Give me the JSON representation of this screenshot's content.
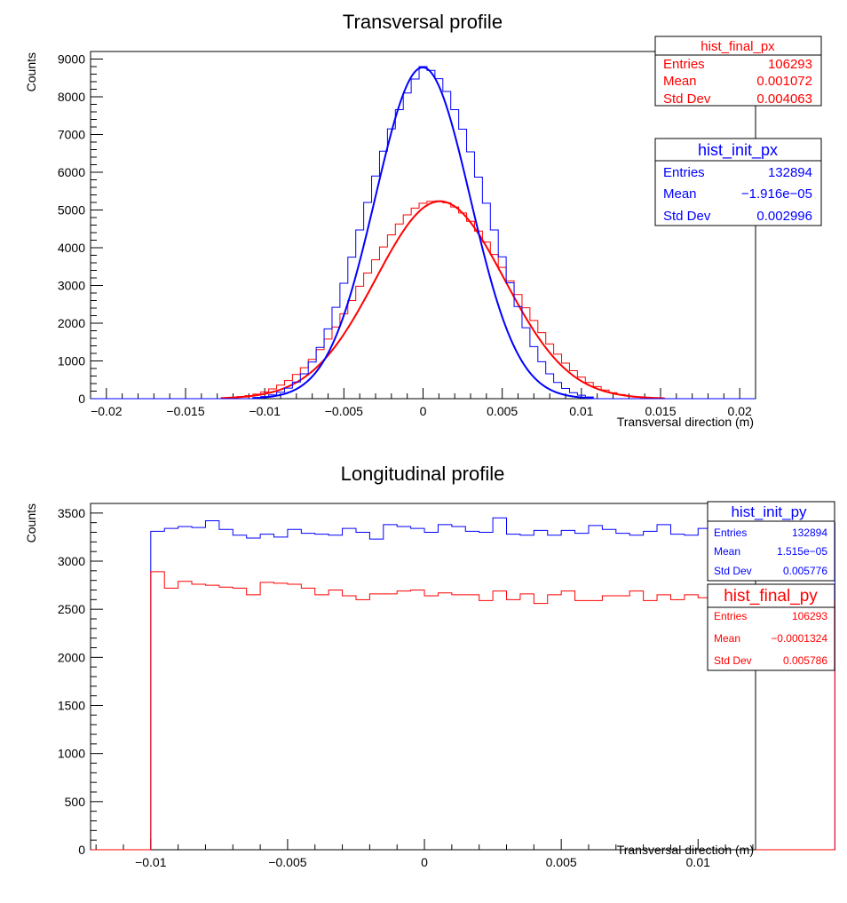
{
  "chart_data": [
    {
      "type": "histogram",
      "title": "Transversal profile",
      "xlabel": "Transversal direction (m)",
      "ylabel": "Counts",
      "xlim": [
        -0.021,
        0.021
      ],
      "ylim": [
        0,
        9200
      ],
      "xticks": [
        -0.02,
        -0.015,
        -0.01,
        -0.005,
        0,
        0.005,
        0.01,
        0.015,
        0.02
      ],
      "xtick_labels": [
        "−0.02",
        "−0.015",
        "−0.01",
        "−0.005",
        "0",
        "0.005",
        "0.01",
        "0.015",
        "0.02"
      ],
      "yticks": [
        0,
        1000,
        2000,
        3000,
        4000,
        5000,
        6000,
        7000,
        8000,
        9000
      ],
      "ytick_labels": [
        "0",
        "1000",
        "2000",
        "3000",
        "4000",
        "5000",
        "6000",
        "7000",
        "8000",
        "9000"
      ],
      "series": [
        {
          "name": "hist_final_px",
          "color": "#ff0000",
          "bin_width": 0.0005,
          "x": [
            -0.0125,
            -0.012,
            -0.0115,
            -0.011,
            -0.0105,
            -0.01,
            -0.0095,
            -0.009,
            -0.0085,
            -0.008,
            -0.0075,
            -0.007,
            -0.0065,
            -0.006,
            -0.0055,
            -0.005,
            -0.0045,
            -0.004,
            -0.0035,
            -0.003,
            -0.0025,
            -0.002,
            -0.0015,
            -0.001,
            -0.0005,
            0,
            0.0005,
            0.001,
            0.0015,
            0.002,
            0.0025,
            0.003,
            0.0035,
            0.004,
            0.0045,
            0.005,
            0.0055,
            0.006,
            0.0065,
            0.007,
            0.0075,
            0.008,
            0.0085,
            0.009,
            0.0095,
            0.01,
            0.0105,
            0.011,
            0.0115,
            0.012,
            0.0125,
            0.013,
            0.0135,
            0.014,
            0.0145,
            0.015
          ],
          "counts": [
            20,
            35,
            55,
            80,
            120,
            180,
            260,
            360,
            480,
            640,
            820,
            1040,
            1300,
            1580,
            1900,
            2250,
            2600,
            2980,
            3330,
            3680,
            4020,
            4340,
            4630,
            4870,
            5050,
            5180,
            5230,
            5240,
            5190,
            5080,
            4920,
            4700,
            4440,
            4150,
            3820,
            3480,
            3120,
            2760,
            2410,
            2070,
            1750,
            1450,
            1180,
            940,
            740,
            570,
            430,
            320,
            230,
            160,
            110,
            70,
            45,
            28,
            16,
            8
          ],
          "fit": {
            "type": "gaus",
            "mean": 0.00107,
            "sigma": 0.00406,
            "amplitude": 5230
          },
          "stats": {
            "title": "hist_final_px",
            "entries": "106293",
            "mean": "0.001072",
            "std_dev": "0.004063"
          }
        },
        {
          "name": "hist_init_px",
          "color": "#0000ff",
          "bin_width": 0.0005,
          "x": [
            -0.0105,
            -0.01,
            -0.0095,
            -0.009,
            -0.0085,
            -0.008,
            -0.0075,
            -0.007,
            -0.0065,
            -0.006,
            -0.0055,
            -0.005,
            -0.0045,
            -0.004,
            -0.0035,
            -0.003,
            -0.0025,
            -0.002,
            -0.0015,
            -0.001,
            -0.0005,
            0,
            0.0005,
            0.001,
            0.0015,
            0.002,
            0.0025,
            0.003,
            0.0035,
            0.004,
            0.0045,
            0.005,
            0.0055,
            0.006,
            0.0065,
            0.007,
            0.0075,
            0.008,
            0.0085,
            0.009,
            0.0095,
            0.01,
            0.0105
          ],
          "counts": [
            30,
            55,
            100,
            170,
            280,
            440,
            660,
            970,
            1360,
            1850,
            2420,
            3060,
            3750,
            4470,
            5200,
            5900,
            6560,
            7150,
            7660,
            8100,
            8470,
            8800,
            8700,
            8480,
            8140,
            7660,
            7140,
            6540,
            5870,
            5180,
            4470,
            3760,
            3070,
            2440,
            1880,
            1380,
            980,
            660,
            430,
            270,
            160,
            90,
            45
          ],
          "fit": {
            "type": "gaus",
            "mean": -2e-05,
            "sigma": 0.003,
            "amplitude": 8780
          },
          "stats": {
            "title": "hist_init_px",
            "entries": "132894",
            "mean": "−1.916e−05",
            "std_dev": "0.002996"
          }
        }
      ]
    },
    {
      "type": "histogram",
      "title": "Longitudinal profile",
      "xlabel": "Transversal direction (m)",
      "ylabel": "Counts",
      "xlim": [
        -0.0122,
        0.0121
      ],
      "ylim": [
        0,
        3600
      ],
      "xticks": [
        -0.01,
        -0.005,
        0,
        0.005,
        0.01
      ],
      "xtick_labels": [
        "−0.01",
        "−0.005",
        "0",
        "0.005",
        "0.01"
      ],
      "yticks": [
        0,
        500,
        1000,
        1500,
        2000,
        2500,
        3000,
        3500
      ],
      "ytick_labels": [
        "0",
        "500",
        "1000",
        "1500",
        "2000",
        "2500",
        "3000",
        "3500"
      ],
      "series": [
        {
          "name": "hist_init_py",
          "color": "#0000ff",
          "bin_start": -0.01,
          "bin_width": 0.0005,
          "counts": [
            3310,
            3340,
            3360,
            3350,
            3420,
            3330,
            3270,
            3240,
            3280,
            3250,
            3330,
            3290,
            3280,
            3270,
            3340,
            3300,
            3230,
            3380,
            3360,
            3340,
            3300,
            3380,
            3360,
            3310,
            3300,
            3450,
            3280,
            3270,
            3320,
            3270,
            3320,
            3290,
            3370,
            3330,
            3290,
            3270,
            3310,
            3380,
            3280,
            3270,
            3340,
            3290,
            3330,
            3370,
            3270,
            3290,
            3310,
            3370,
            3280,
            3400
          ],
          "stats": {
            "title": "hist_init_py",
            "entries": "132894",
            "mean": "1.515e−05",
            "std_dev": "0.005776"
          }
        },
        {
          "name": "hist_final_py",
          "color": "#ff0000",
          "bin_start": -0.01,
          "bin_width": 0.0005,
          "counts": [
            2890,
            2720,
            2790,
            2760,
            2750,
            2730,
            2720,
            2650,
            2780,
            2770,
            2760,
            2720,
            2650,
            2700,
            2640,
            2600,
            2660,
            2660,
            2690,
            2700,
            2640,
            2670,
            2650,
            2650,
            2590,
            2690,
            2600,
            2660,
            2560,
            2650,
            2690,
            2590,
            2590,
            2640,
            2640,
            2690,
            2590,
            2650,
            2600,
            2650,
            2620,
            2570,
            2560,
            2580,
            2550,
            2580,
            2600,
            2570,
            2590,
            2590
          ],
          "stats": {
            "title": "hist_final_py",
            "entries": "106293",
            "mean": "−0.0001324",
            "std_dev": "0.005786"
          }
        }
      ]
    }
  ],
  "stat_labels": {
    "entries": "Entries",
    "mean": "Mean",
    "std_dev": "Std Dev"
  }
}
